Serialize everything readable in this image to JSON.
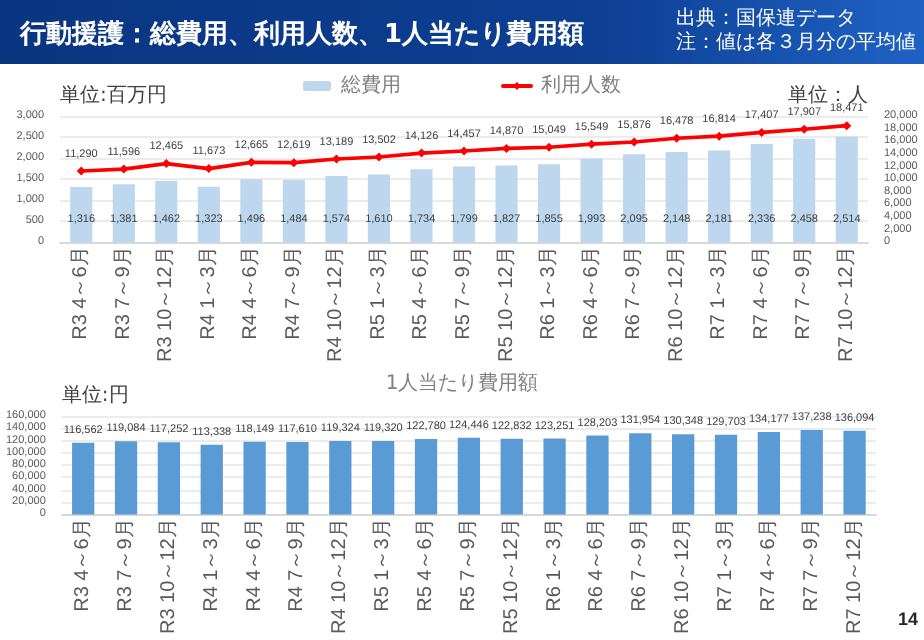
{
  "chart_data": [
    {
      "type": "bar",
      "title": "行動援護：総費用、利用人数、1人当たり費用額",
      "annotations": [
        "出典：国保連データ",
        "注：値は各３月分の平均値"
      ],
      "ylabel": "単位:百万円",
      "y2label": "単位：人",
      "categories": [
        "R3 4～6月",
        "R3 7～9月",
        "R3 10～12月",
        "R4 1～3月",
        "R4 4～6月",
        "R4 7～9月",
        "R4 10～12月",
        "R5 1～3月",
        "R5 4～6月",
        "R5 7～9月",
        "R5 10～12月",
        "R6 1～3月",
        "R6 4～6月",
        "R6 7～9月",
        "R6 10～12月",
        "R7 1～3月",
        "R7 4～6月",
        "R7 7～9月",
        "R7 10～12月"
      ],
      "series": [
        {
          "name": "総費用",
          "color": "#bdd7ee",
          "values": [
            1316,
            1381,
            1462,
            1323,
            1496,
            1484,
            1574,
            1610,
            1734,
            1799,
            1827,
            1855,
            1993,
            2095,
            2148,
            2181,
            2336,
            2458,
            2514
          ],
          "value_labels": [
            "1,316",
            "1,381",
            "1,462",
            "1,323",
            "1,496",
            "1,484",
            "1,574",
            "1,610",
            "1,734",
            "1,799",
            "1,827",
            "1,855",
            "1,993",
            "2,095",
            "2,148",
            "2,181",
            "2,336",
            "2,458",
            "2,514"
          ]
        },
        {
          "name": "利用人数",
          "type": "line",
          "axis": "y2",
          "color": "#ff0000",
          "values": [
            11290,
            11596,
            12465,
            11673,
            12665,
            12619,
            13189,
            13502,
            14126,
            14457,
            14870,
            15049,
            15549,
            15876,
            16478,
            16814,
            17407,
            17907,
            18471
          ],
          "value_labels": [
            "11,290",
            "11,596",
            "12,465",
            "11,673",
            "12,665",
            "12,619",
            "13,189",
            "13,502",
            "14,126",
            "14,457",
            "14,870",
            "15,049",
            "15,549",
            "15,876",
            "16,478",
            "16,814",
            "17,407",
            "17,907",
            "18,471"
          ]
        }
      ],
      "ylim": [
        0,
        3000
      ],
      "yticks": [
        0,
        {
          "value": 500,
          "label": "500"
        },
        {
          "value": 1000,
          "label": "1,000"
        },
        {
          "value": 1500,
          "label": "1,500"
        },
        {
          "value": 2000,
          "label": "2,000"
        },
        {
          "value": 2500,
          "label": "2,500"
        },
        {
          "value": 3000,
          "label": "3,000"
        }
      ],
      "y2lim": [
        0,
        20000
      ],
      "y2ticks": [
        0,
        {
          "value": 2000,
          "label": "2,000"
        },
        {
          "value": 4000,
          "label": "4,000"
        },
        {
          "value": 6000,
          "label": "6,000"
        },
        {
          "value": 8000,
          "label": "8,000"
        },
        {
          "value": 10000,
          "label": "10,000"
        },
        {
          "value": 12000,
          "label": "12,000"
        },
        {
          "value": 14000,
          "label": "14,000"
        },
        {
          "value": 16000,
          "label": "16,000"
        },
        {
          "value": 18000,
          "label": "18,000"
        },
        {
          "value": 20000,
          "label": "20,000"
        }
      ],
      "grid": "y",
      "legend": "top",
      "marker": "diamond",
      "line_style": "solid"
    },
    {
      "type": "bar",
      "title": "1人当たり費用額",
      "ylabel": "単位:円",
      "annotations": [
        "14"
      ],
      "categories": [
        "R3 4～6月",
        "R3 7～9月",
        "R3 10～12月",
        "R4 1～3月",
        "R4 4～6月",
        "R4 7～9月",
        "R4 10～12月",
        "R5 1～3月",
        "R5 4～6月",
        "R5 7～9月",
        "R5 10～12月",
        "R6 1～3月",
        "R6 4～6月",
        "R6 7～9月",
        "R6 10～12月",
        "R7 1～3月",
        "R7 4～6月",
        "R7 7～9月",
        "R7 10～12月"
      ],
      "series": [
        {
          "color": "#5b9bd5",
          "values": [
            116562,
            119084,
            117252,
            113338,
            118149,
            117610,
            119324,
            119320,
            122780,
            124446,
            122832,
            123251,
            128203,
            131954,
            130348,
            129703,
            134177,
            137238,
            136094
          ],
          "value_labels": [
            "116,562",
            "119,084",
            "117,252",
            "113,338",
            "118,149",
            "117,610",
            "119,324",
            "119,320",
            "122,780",
            "124,446",
            "122,832",
            "123,251",
            "128,203",
            "131,954",
            "130,348",
            "129,703",
            "134,177",
            "137,238",
            "136,094"
          ]
        }
      ],
      "ylim": [
        0,
        160000
      ],
      "yticks": [
        0,
        {
          "value": 20000,
          "label": "20,000"
        },
        {
          "value": 40000,
          "label": "40,000"
        },
        {
          "value": 60000,
          "label": "60,000"
        },
        {
          "value": 80000,
          "label": "80,000"
        },
        {
          "value": 100000,
          "label": "100,000"
        },
        {
          "value": 120000,
          "label": "120,000"
        },
        {
          "value": 140000,
          "label": "140,000"
        },
        {
          "value": 160000,
          "label": "160,000"
        }
      ],
      "grid": "y"
    }
  ]
}
